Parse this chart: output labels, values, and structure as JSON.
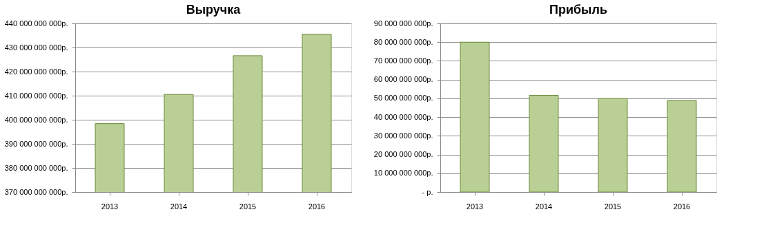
{
  "chart_data": [
    {
      "type": "bar",
      "title": "Выручка",
      "categories": [
        "2013",
        "2014",
        "2015",
        "2016"
      ],
      "values": [
        398400000000,
        410500000000,
        426600000000,
        435500000000
      ],
      "color": "#b9cf95",
      "ylim": [
        370000000000,
        440000000000
      ],
      "yticks": [
        {
          "value": 370000000000,
          "label": "370 000 000 000р."
        },
        {
          "value": 380000000000,
          "label": "380 000 000 000р."
        },
        {
          "value": 390000000000,
          "label": "390 000 000 000р."
        },
        {
          "value": 400000000000,
          "label": "400 000 000 000р."
        },
        {
          "value": 410000000000,
          "label": "410 000 000 000р."
        },
        {
          "value": 420000000000,
          "label": "420 000 000 000р."
        },
        {
          "value": 430000000000,
          "label": "430 000 000 000р."
        },
        {
          "value": 440000000000,
          "label": "440 000 000 000р."
        }
      ],
      "grid": "y"
    },
    {
      "type": "bar",
      "title": "Прибыль",
      "categories": [
        "2013",
        "2014",
        "2015",
        "2016"
      ],
      "values": [
        80000000000,
        51600000000,
        49900000000,
        48900000000
      ],
      "color": "#b9cf95",
      "ylim": [
        0,
        90000000000
      ],
      "yticks": [
        {
          "value": 0,
          "label": "-  р."
        },
        {
          "value": 10000000000,
          "label": "10 000 000 000р."
        },
        {
          "value": 20000000000,
          "label": "20 000 000 000р."
        },
        {
          "value": 30000000000,
          "label": "30 000 000 000р."
        },
        {
          "value": 40000000000,
          "label": "40 000 000 000р."
        },
        {
          "value": 50000000000,
          "label": "50 000 000 000р."
        },
        {
          "value": 60000000000,
          "label": "60 000 000 000р."
        },
        {
          "value": 70000000000,
          "label": "70 000 000 000р."
        },
        {
          "value": 80000000000,
          "label": "80 000 000 000р."
        },
        {
          "value": 90000000000,
          "label": "90 000 000 000р."
        }
      ],
      "grid": "y"
    }
  ]
}
